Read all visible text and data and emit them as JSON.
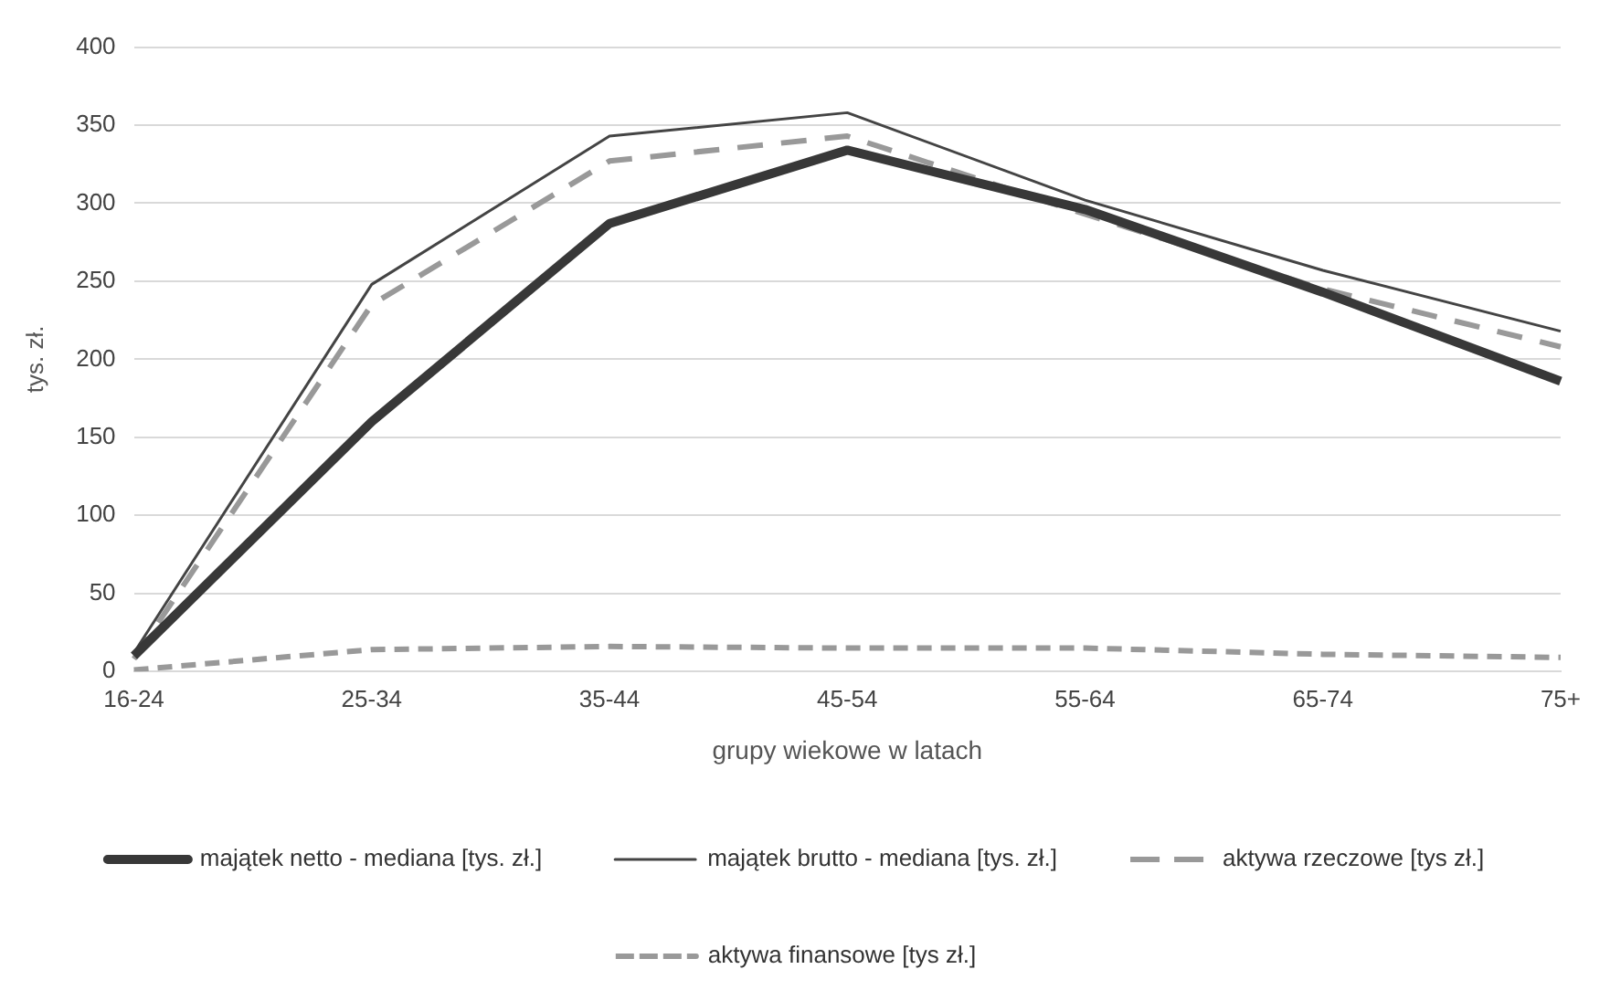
{
  "chart_data": {
    "type": "line",
    "xlabel": "grupy wiekowe w latach",
    "ylabel": "tys. zł.",
    "categories": [
      "16-24",
      "25-34",
      "35-44",
      "45-54",
      "55-64",
      "65-74",
      "75+"
    ],
    "series": [
      {
        "name": "majątek netto - mediana [tys. zł.]",
        "color": "#383838",
        "line_style": "solid",
        "values": [
          10,
          160,
          287,
          334,
          296,
          243,
          186
        ]
      },
      {
        "name": "majątek brutto - mediana [tys. zł.]",
        "color": "#444444",
        "line_style": "solid",
        "values": [
          12,
          248,
          343,
          358,
          302,
          257,
          218
        ]
      },
      {
        "name": "aktywa rzeczowe [tys zł.]",
        "color": "#999999",
        "line_style": "dashed",
        "values": [
          8,
          235,
          327,
          343,
          293,
          245,
          208
        ]
      },
      {
        "name": "aktywa finansowe [tys zł.]",
        "color": "#999999",
        "line_style": "dashed",
        "values": [
          1,
          14,
          16,
          15,
          15,
          11,
          9
        ]
      }
    ],
    "ylim": [
      0,
      400
    ],
    "yticks": [
      0,
      50,
      100,
      150,
      200,
      250,
      300,
      350,
      400
    ],
    "grid": "y",
    "legend": "bottom",
    "marker": "none"
  }
}
